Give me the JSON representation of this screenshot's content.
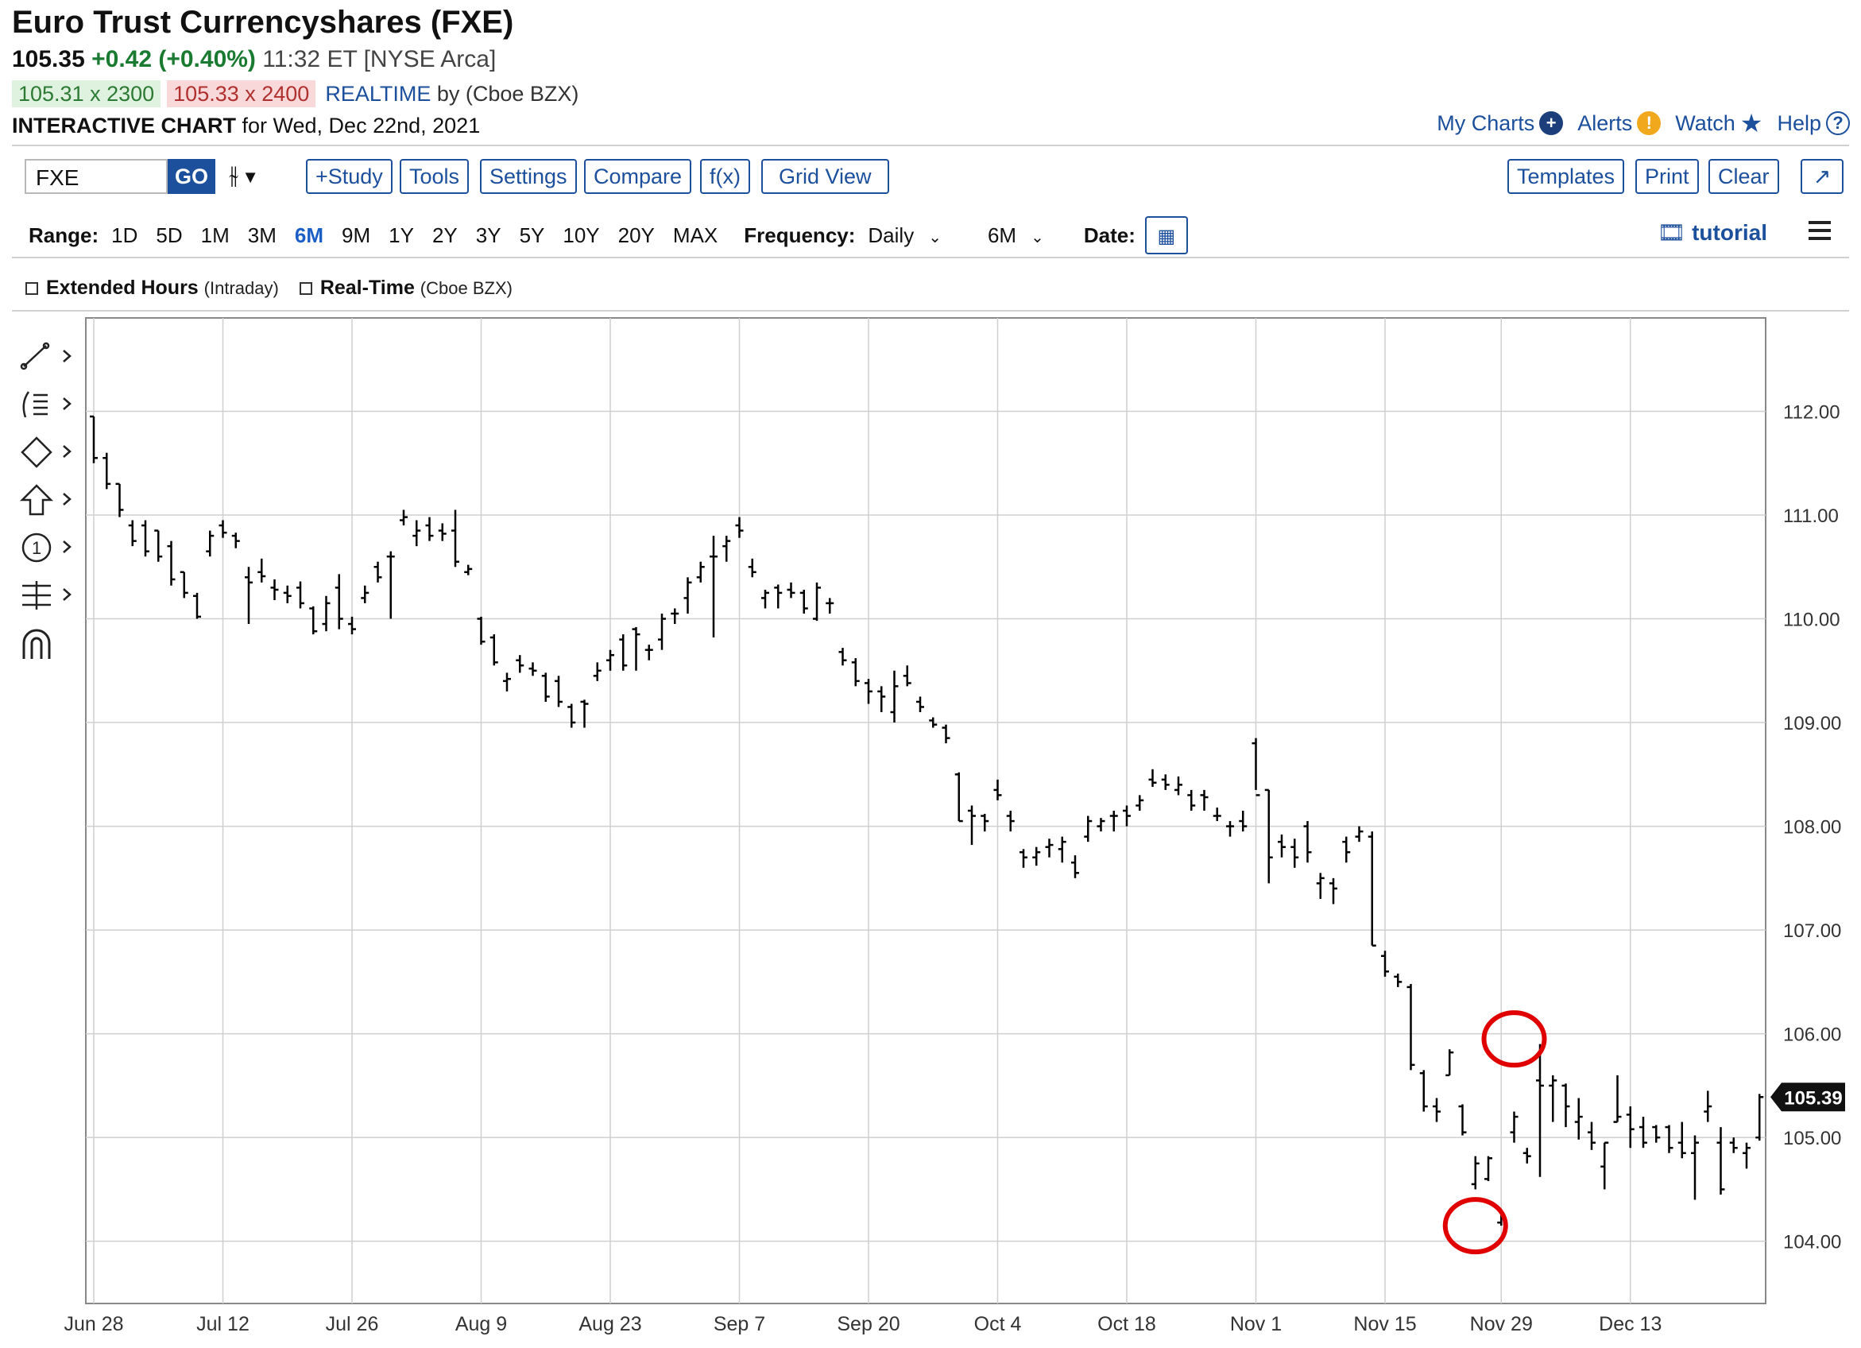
{
  "header": {
    "title": "Euro Trust Currencyshares (FXE)",
    "last_price": "105.35",
    "change": "+0.42 (+0.40%)",
    "time_exchange": "11:32 ET [NYSE Arca]",
    "bid": "105.31 x 2300",
    "ask": "105.33 x 2400",
    "realtime": "REALTIME",
    "realtime_by": "by (Cboe BZX)",
    "chart_label": "INTERACTIVE CHART",
    "chart_date": "for Wed, Dec 22nd, 2021"
  },
  "top_links": {
    "my_charts": "My Charts",
    "alerts": "Alerts",
    "watch": "Watch",
    "help": "Help"
  },
  "toolbar": {
    "symbol_value": "FXE",
    "go_label": "GO",
    "study_label": "+Study",
    "tools_label": "Tools",
    "settings_label": "Settings",
    "compare_label": "Compare",
    "fx_label": "f(x)",
    "grid_view_label": "Grid View",
    "templates_label": "Templates",
    "print_label": "Print",
    "clear_label": "Clear"
  },
  "range_bar": {
    "range_label": "Range:",
    "ranges": [
      "1D",
      "5D",
      "1M",
      "3M",
      "6M",
      "9M",
      "1Y",
      "2Y",
      "3Y",
      "5Y",
      "10Y",
      "20Y",
      "MAX"
    ],
    "selected_range": "6M",
    "frequency_label": "Frequency:",
    "frequency_value": "Daily",
    "period_value": "6M",
    "date_label": "Date:",
    "tutorial_label": "tutorial"
  },
  "options": {
    "extended_hours_label": "Extended Hours",
    "extended_hours_sub": "(Intraday)",
    "realtime_label": "Real-Time",
    "realtime_sub": "(Cboe BZX)"
  },
  "icons": [
    "plus-circle-icon",
    "alert-icon",
    "star-icon",
    "help-icon",
    "bars-icon",
    "chevron-down-icon",
    "calendar-icon",
    "film-icon",
    "hamburger-icon",
    "expand-icon",
    "line-tool-icon",
    "fib-tool-icon",
    "shape-tool-icon",
    "arrow-up-tool-icon",
    "counter-tool-icon",
    "measure-tool-icon",
    "magnet-icon"
  ],
  "colors": {
    "accent": "#1c4f9c",
    "up": "#1a7a32",
    "annotation": "#e00000",
    "bar": "#000000"
  },
  "chart_data": {
    "type": "ohlc",
    "title": "",
    "ylim": [
      103.4,
      112.9
    ],
    "y_ticks": [
      "112.00",
      "111.00",
      "110.00",
      "109.00",
      "108.00",
      "107.00",
      "106.00",
      "105.00",
      "104.00"
    ],
    "x_tick_labels": [
      "Jun 28",
      "Jul 12",
      "Jul 26",
      "Aug 9",
      "Aug 23",
      "Sep 7",
      "Sep 20",
      "Oct 4",
      "Oct 18",
      "Nov 1",
      "Nov 15",
      "Nov 29",
      "Dec 13"
    ],
    "x_tick_index": [
      0,
      10,
      20,
      30,
      40,
      50,
      60,
      70,
      80,
      90,
      100,
      109,
      119
    ],
    "last_price_label": "105.39",
    "grid": true,
    "annotations": [
      {
        "shape": "circle",
        "color": "#e00000",
        "bar_index": 107,
        "value": 104.15
      },
      {
        "shape": "circle",
        "color": "#e00000",
        "bar_index": 110,
        "value": 105.95
      }
    ],
    "ohlc": [
      [
        111.95,
        111.95,
        111.5,
        111.55
      ],
      [
        111.55,
        111.6,
        111.25,
        111.3
      ],
      [
        111.3,
        111.3,
        110.98,
        111.05
      ],
      [
        110.9,
        110.95,
        110.7,
        110.75
      ],
      [
        110.9,
        110.95,
        110.6,
        110.65
      ],
      [
        110.85,
        110.85,
        110.55,
        110.6
      ],
      [
        110.7,
        110.75,
        110.32,
        110.38
      ],
      [
        110.45,
        110.45,
        110.2,
        110.25
      ],
      [
        110.22,
        110.25,
        110.0,
        110.02
      ],
      [
        110.65,
        110.85,
        110.6,
        110.8
      ],
      [
        110.9,
        110.95,
        110.78,
        110.83
      ],
      [
        110.8,
        110.83,
        110.68,
        110.75
      ],
      [
        110.4,
        110.5,
        109.95,
        110.35
      ],
      [
        110.45,
        110.58,
        110.35,
        110.41
      ],
      [
        110.3,
        110.38,
        110.18,
        110.28
      ],
      [
        110.25,
        110.32,
        110.15,
        110.22
      ],
      [
        110.3,
        110.36,
        110.1,
        110.15
      ],
      [
        110.1,
        110.12,
        109.85,
        109.88
      ],
      [
        109.95,
        110.22,
        109.88,
        110.15
      ],
      [
        110.3,
        110.43,
        109.9,
        110.0
      ],
      [
        109.95,
        110.02,
        109.85,
        109.9
      ],
      [
        110.2,
        110.32,
        110.15,
        110.25
      ],
      [
        110.5,
        110.55,
        110.35,
        110.4
      ],
      [
        110.6,
        110.65,
        110.0,
        110.6
      ],
      [
        110.95,
        111.05,
        110.9,
        110.98
      ],
      [
        110.8,
        110.95,
        110.7,
        110.85
      ],
      [
        110.9,
        110.98,
        110.75,
        110.8
      ],
      [
        110.85,
        110.92,
        110.75,
        110.82
      ],
      [
        110.85,
        111.05,
        110.5,
        110.55
      ],
      [
        110.45,
        110.52,
        110.42,
        110.48
      ],
      [
        110.0,
        110.02,
        109.75,
        109.78
      ],
      [
        109.82,
        109.85,
        109.55,
        109.58
      ],
      [
        109.4,
        109.48,
        109.3,
        109.42
      ],
      [
        109.6,
        109.65,
        109.48,
        109.55
      ],
      [
        109.52,
        109.58,
        109.45,
        109.5
      ],
      [
        109.45,
        109.48,
        109.2,
        109.25
      ],
      [
        109.4,
        109.45,
        109.15,
        109.2
      ],
      [
        109.15,
        109.18,
        108.95,
        109.0
      ],
      [
        109.2,
        109.22,
        108.95,
        109.18
      ],
      [
        109.45,
        109.58,
        109.4,
        109.5
      ],
      [
        109.6,
        109.7,
        109.5,
        109.65
      ],
      [
        109.8,
        109.85,
        109.5,
        109.55
      ],
      [
        109.9,
        109.92,
        109.5,
        109.85
      ],
      [
        109.7,
        109.75,
        109.6,
        109.7
      ],
      [
        109.8,
        110.05,
        109.7,
        110.0
      ],
      [
        110.05,
        110.1,
        109.95,
        110.05
      ],
      [
        110.2,
        110.4,
        110.05,
        110.35
      ],
      [
        110.4,
        110.55,
        110.35,
        110.5
      ],
      [
        110.6,
        110.8,
        109.82,
        110.6
      ],
      [
        110.7,
        110.8,
        110.55,
        110.75
      ],
      [
        110.9,
        110.98,
        110.78,
        110.85
      ],
      [
        110.5,
        110.58,
        110.4,
        110.45
      ],
      [
        110.2,
        110.28,
        110.1,
        110.25
      ],
      [
        110.3,
        110.33,
        110.1,
        110.25
      ],
      [
        110.28,
        110.35,
        110.2,
        110.25
      ],
      [
        110.25,
        110.28,
        110.05,
        110.1
      ],
      [
        110.0,
        110.35,
        109.98,
        110.3
      ],
      [
        110.15,
        110.2,
        110.05,
        110.15
      ],
      [
        109.68,
        109.72,
        109.55,
        109.6
      ],
      [
        109.58,
        109.62,
        109.35,
        109.4
      ],
      [
        109.38,
        109.42,
        109.18,
        109.3
      ],
      [
        109.3,
        109.35,
        109.1,
        109.25
      ],
      [
        109.1,
        109.5,
        109.0,
        109.35
      ],
      [
        109.45,
        109.55,
        109.35,
        109.38
      ],
      [
        109.2,
        109.25,
        109.1,
        109.15
      ],
      [
        109.02,
        109.05,
        108.95,
        108.98
      ],
      [
        108.95,
        108.98,
        108.8,
        108.85
      ],
      [
        108.5,
        108.52,
        108.05,
        108.05
      ],
      [
        108.15,
        108.2,
        107.82,
        108.1
      ],
      [
        108.1,
        108.12,
        107.95,
        108.05
      ],
      [
        108.35,
        108.45,
        108.25,
        108.3
      ],
      [
        108.1,
        108.15,
        107.95,
        108.05
      ],
      [
        107.75,
        107.78,
        107.6,
        107.7
      ],
      [
        107.7,
        107.8,
        107.62,
        107.75
      ],
      [
        107.8,
        107.88,
        107.7,
        107.82
      ],
      [
        107.78,
        107.9,
        107.65,
        107.85
      ],
      [
        107.65,
        107.72,
        107.5,
        107.55
      ],
      [
        107.9,
        108.1,
        107.85,
        108.05
      ],
      [
        108.0,
        108.08,
        107.95,
        108.05
      ],
      [
        108.1,
        108.15,
        107.95,
        108.1
      ],
      [
        108.15,
        108.2,
        108.0,
        108.1
      ],
      [
        108.2,
        108.3,
        108.15,
        108.25
      ],
      [
        108.45,
        108.55,
        108.38,
        108.42
      ],
      [
        108.45,
        108.5,
        108.35,
        108.4
      ],
      [
        108.35,
        108.48,
        108.3,
        108.4
      ],
      [
        108.3,
        108.35,
        108.15,
        108.2
      ],
      [
        108.3,
        108.35,
        108.15,
        108.28
      ],
      [
        108.1,
        108.18,
        108.05,
        108.1
      ],
      [
        108.0,
        108.05,
        107.9,
        108.0
      ],
      [
        108.05,
        108.15,
        107.95,
        108.0
      ],
      [
        108.8,
        108.85,
        108.35,
        108.3
      ],
      [
        108.35,
        108.35,
        107.45,
        107.7
      ],
      [
        107.85,
        107.92,
        107.7,
        107.8
      ],
      [
        107.8,
        107.88,
        107.6,
        107.7
      ],
      [
        108.0,
        108.05,
        107.65,
        107.75
      ],
      [
        107.45,
        107.55,
        107.3,
        107.5
      ],
      [
        107.45,
        107.5,
        107.25,
        107.4
      ],
      [
        107.85,
        107.9,
        107.65,
        107.75
      ],
      [
        107.9,
        108.0,
        107.85,
        107.95
      ],
      [
        107.9,
        107.95,
        106.85,
        106.85
      ],
      [
        106.75,
        106.8,
        106.55,
        106.6
      ],
      [
        106.55,
        106.58,
        106.45,
        106.5
      ],
      [
        106.45,
        106.48,
        105.65,
        105.7
      ],
      [
        105.62,
        105.65,
        105.25,
        105.3
      ],
      [
        105.3,
        105.38,
        105.15,
        105.25
      ],
      [
        105.6,
        105.85,
        105.6,
        105.82
      ],
      [
        105.3,
        105.32,
        105.02,
        105.05
      ],
      [
        104.55,
        104.82,
        104.5,
        104.75
      ],
      [
        104.6,
        104.82,
        104.58,
        104.8
      ],
      [
        104.18,
        104.3,
        104.15,
        104.25
      ],
      [
        105.05,
        105.25,
        104.95,
        105.2
      ],
      [
        104.85,
        104.9,
        104.75,
        104.82
      ],
      [
        105.55,
        105.9,
        104.62,
        105.5
      ],
      [
        105.5,
        105.6,
        105.15,
        105.55
      ],
      [
        105.5,
        105.52,
        105.1,
        105.3
      ],
      [
        105.15,
        105.38,
        104.98,
        105.2
      ],
      [
        105.05,
        105.15,
        104.88,
        104.95
      ],
      [
        104.72,
        104.95,
        104.5,
        104.95
      ],
      [
        105.15,
        105.6,
        105.15,
        105.2
      ],
      [
        105.22,
        105.3,
        104.9,
        105.08
      ],
      [
        105.1,
        105.2,
        104.9,
        104.95
      ],
      [
        105.1,
        105.12,
        104.95,
        105.0
      ],
      [
        105.1,
        105.12,
        104.85,
        104.9
      ],
      [
        104.95,
        105.15,
        104.8,
        104.85
      ],
      [
        104.85,
        105.02,
        104.4,
        104.95
      ],
      [
        105.25,
        105.45,
        105.15,
        105.3
      ],
      [
        104.95,
        105.1,
        104.45,
        104.5
      ],
      [
        104.95,
        105.0,
        104.85,
        104.9
      ],
      [
        104.85,
        104.95,
        104.7,
        104.9
      ],
      [
        105.0,
        105.42,
        104.97,
        105.39
      ]
    ]
  }
}
